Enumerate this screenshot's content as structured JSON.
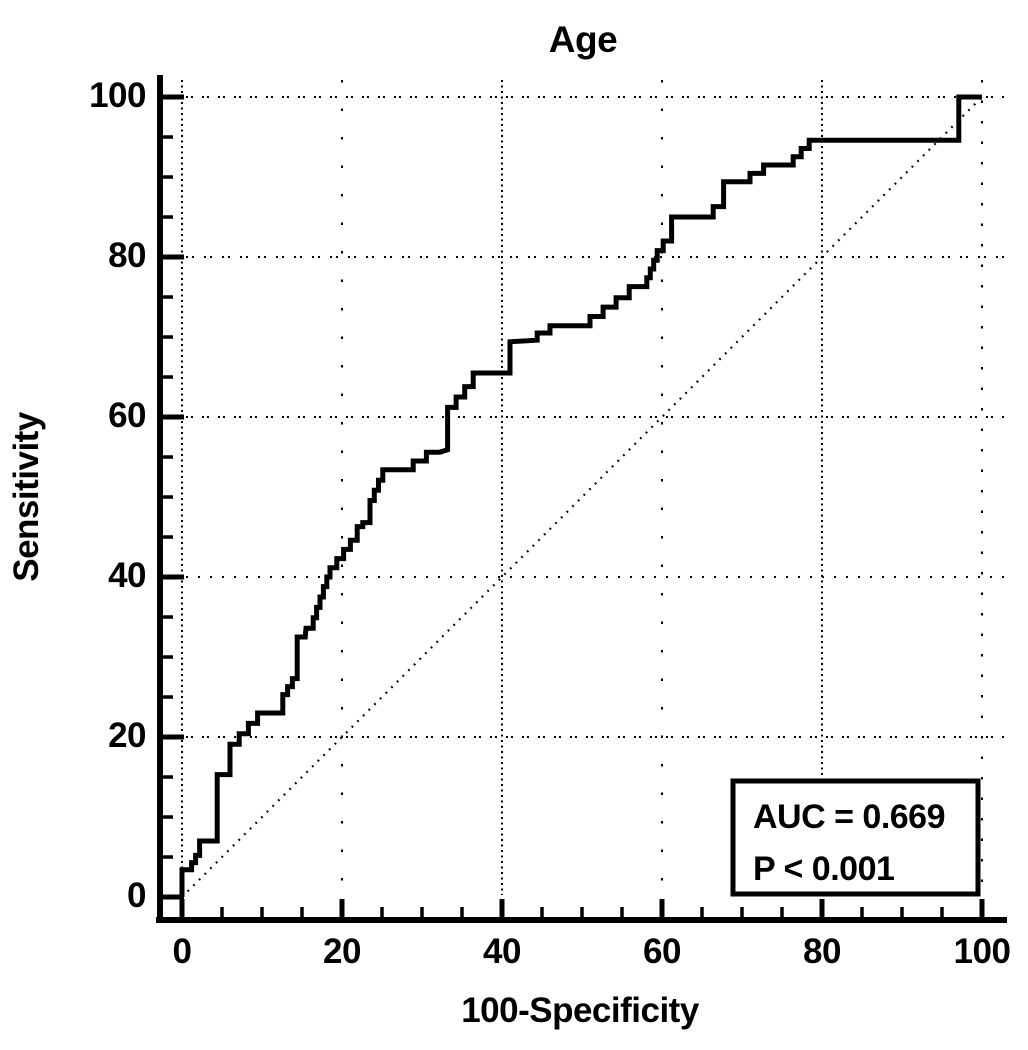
{
  "title": "Age",
  "x_axis": {
    "label": "100-Specificity",
    "ticks": [
      0,
      20,
      40,
      60,
      80,
      100
    ],
    "minor_step": 5,
    "range": [
      0,
      100
    ]
  },
  "y_axis": {
    "label": "Sensitivity",
    "ticks": [
      0,
      20,
      40,
      60,
      80,
      100
    ],
    "minor_step": 5,
    "range": [
      0,
      100
    ]
  },
  "annotation": {
    "auc_label": "AUC = 0.669",
    "p_label": "P < 0.001"
  },
  "colors": {
    "curve": "#000000",
    "grid": "#000000",
    "diagonal": "#000000",
    "text": "#000000",
    "background": "#ffffff"
  },
  "chart_data": {
    "type": "line",
    "title": "Age",
    "xlabel": "100-Specificity",
    "ylabel": "Sensitivity",
    "xlim": [
      0,
      100
    ],
    "ylim": [
      0,
      100
    ],
    "grid": "dotted at 20-unit intervals, both axes",
    "legend": "none",
    "auc": 0.669,
    "p_value": "< 0.001",
    "series": [
      {
        "name": "ROC curve (Age)",
        "style": "solid-step",
        "points": [
          [
            0,
            0
          ],
          [
            0,
            3.4
          ],
          [
            1.2,
            3.4
          ],
          [
            2.2,
            5.2
          ],
          [
            2.2,
            7
          ],
          [
            4.4,
            7
          ],
          [
            4.4,
            15.3
          ],
          [
            6,
            15.3
          ],
          [
            6,
            17.8
          ],
          [
            10.6,
            23
          ],
          [
            12.6,
            23
          ],
          [
            12.6,
            24.3
          ],
          [
            14.4,
            27.3
          ],
          [
            14.4,
            32.5
          ],
          [
            15.4,
            32.5
          ],
          [
            15.5,
            33.6
          ],
          [
            16.4,
            33.6
          ],
          [
            18.1,
            38.8
          ],
          [
            18.5,
            40
          ],
          [
            21.9,
            44.6
          ],
          [
            22.6,
            46.3
          ],
          [
            23.5,
            46.8
          ],
          [
            23.5,
            48.3
          ],
          [
            25.1,
            52.1
          ],
          [
            25.6,
            53.4
          ],
          [
            28.9,
            53.4
          ],
          [
            32.2,
            55.6
          ],
          [
            33.2,
            55.9
          ],
          [
            33.2,
            59.9
          ],
          [
            36.4,
            63.8
          ],
          [
            37.9,
            65.5
          ],
          [
            41,
            65.5
          ],
          [
            41,
            69.4
          ],
          [
            44.4,
            69.6
          ],
          [
            47.6,
            71.4
          ],
          [
            51,
            71.4
          ],
          [
            55.9,
            74.9
          ],
          [
            55.9,
            76.3
          ],
          [
            58.1,
            76.3
          ],
          [
            59.4,
            79.6
          ],
          [
            60.9,
            82
          ],
          [
            61.2,
            82
          ],
          [
            61.2,
            85
          ],
          [
            66.4,
            85
          ],
          [
            67.5,
            86.3
          ],
          [
            67.7,
            86.3
          ],
          [
            67.7,
            89.4
          ],
          [
            71,
            89.4
          ],
          [
            74.4,
            91.5
          ],
          [
            76.4,
            91.5
          ],
          [
            79.4,
            94.6
          ],
          [
            97.1,
            94.6
          ],
          [
            97.1,
            100
          ],
          [
            100,
            100
          ]
        ]
      },
      {
        "name": "chance diagonal",
        "style": "dotted",
        "points": [
          [
            0,
            0
          ],
          [
            100,
            100
          ]
        ]
      }
    ]
  }
}
